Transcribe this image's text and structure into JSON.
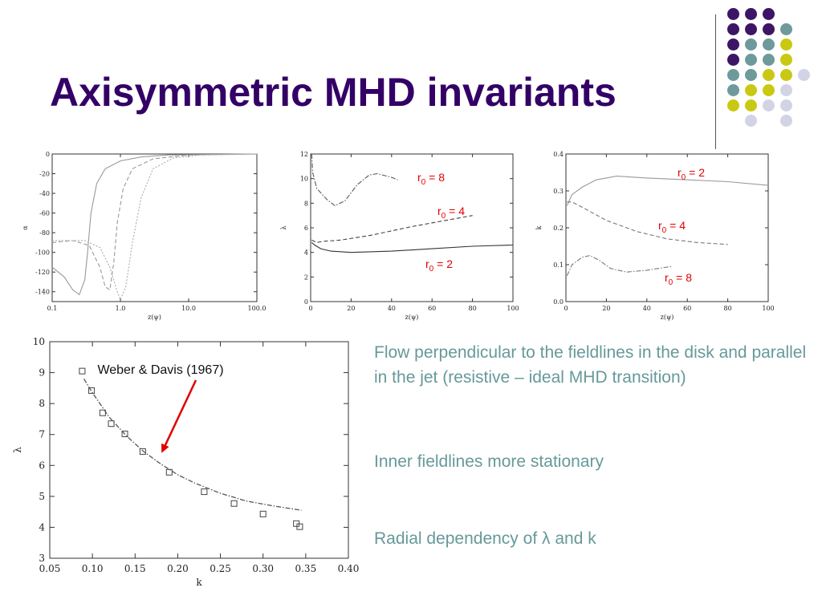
{
  "slide": {
    "title": "Axisymmetric MHD invariants",
    "bullets": [
      "Flow perpendicular to the fieldlines in the disk and parallel in the jet (resistive – ideal MHD transition)",
      "Inner fieldlines more stationary"
    ],
    "bullet3_prefix": "Radial dependency of ",
    "bullet3_symbol": "λ",
    "bullet3_suffix": " and k"
  },
  "decor_dots": [
    [
      "#3d1566",
      "#3d1566",
      "#3d1566",
      null,
      null
    ],
    [
      "#3d1566",
      "#3d1566",
      "#3d1566",
      "#6e9a9b",
      null
    ],
    [
      "#3d1566",
      "#6e9a9b",
      "#6e9a9b",
      "#c9c914",
      null
    ],
    [
      "#3d1566",
      "#6e9a9b",
      "#6e9a9b",
      "#c9c914",
      null
    ],
    [
      "#6e9a9b",
      "#6e9a9b",
      "#c9c914",
      "#c9c914",
      "#d3d3e6"
    ],
    [
      "#6e9a9b",
      "#c9c914",
      "#c9c914",
      "#d3d3e6",
      null
    ],
    [
      "#c9c914",
      "#c9c914",
      "#d3d3e6",
      "#d3d3e6",
      null
    ],
    [
      null,
      "#d3d3e6",
      null,
      "#d3d3e6",
      null
    ]
  ],
  "chart_data": [
    {
      "type": "line",
      "xlabel": "z(ψ)",
      "ylabel": "α",
      "xscale": "log",
      "xlim": [
        0.1,
        100
      ],
      "ylim": [
        -150,
        0
      ],
      "xticks": [
        {
          "v": 0.1,
          "label": "0.1"
        },
        {
          "v": 1,
          "label": "1.0"
        },
        {
          "v": 10,
          "label": "10.0"
        },
        {
          "v": 100,
          "label": "100.0"
        }
      ],
      "yticks": [
        0,
        -20,
        -40,
        -60,
        -80,
        -100,
        -120,
        -140
      ],
      "series": [
        {
          "style": "solid",
          "points": [
            [
              0.1,
              -115
            ],
            [
              0.15,
              -125
            ],
            [
              0.2,
              -138
            ],
            [
              0.25,
              -143
            ],
            [
              0.3,
              -128
            ],
            [
              0.33,
              -100
            ],
            [
              0.37,
              -60
            ],
            [
              0.45,
              -30
            ],
            [
              0.6,
              -15
            ],
            [
              1,
              -7
            ],
            [
              2,
              -3
            ],
            [
              5,
              -1
            ],
            [
              100,
              0
            ]
          ]
        },
        {
          "style": "dashed",
          "points": [
            [
              0.1,
              -90
            ],
            [
              0.2,
              -88
            ],
            [
              0.35,
              -93
            ],
            [
              0.5,
              -115
            ],
            [
              0.6,
              -135
            ],
            [
              0.7,
              -138
            ],
            [
              0.8,
              -110
            ],
            [
              0.9,
              -70
            ],
            [
              1.1,
              -35
            ],
            [
              1.5,
              -15
            ],
            [
              3,
              -5
            ],
            [
              10,
              -1
            ],
            [
              100,
              0
            ]
          ]
        },
        {
          "style": "dotted",
          "points": [
            [
              0.1,
              -88
            ],
            [
              0.3,
              -88
            ],
            [
              0.5,
              -95
            ],
            [
              0.7,
              -115
            ],
            [
              0.9,
              -140
            ],
            [
              1,
              -148
            ],
            [
              1.2,
              -135
            ],
            [
              1.5,
              -90
            ],
            [
              2,
              -45
            ],
            [
              3,
              -15
            ],
            [
              6,
              -4
            ],
            [
              15,
              -1
            ],
            [
              100,
              0
            ]
          ]
        }
      ]
    },
    {
      "type": "line",
      "xlabel": "z(ψ)",
      "ylabel": "λ",
      "xlim": [
        0,
        100
      ],
      "ylim": [
        0,
        12
      ],
      "xticks": [
        0,
        20,
        40,
        60,
        80,
        100
      ],
      "yticks": [
        0,
        2,
        4,
        6,
        8,
        10,
        12
      ],
      "annotations": [
        {
          "label": "r",
          "sub": "0",
          "text": " = 8"
        },
        {
          "label": "r",
          "sub": "0",
          "text": " = 4"
        },
        {
          "label": "r",
          "sub": "0",
          "text": " = 2"
        }
      ],
      "series": [
        {
          "name": "r0 = 2",
          "style": "solid",
          "points": [
            [
              0.5,
              4.8
            ],
            [
              2,
              4.6
            ],
            [
              5,
              4.3
            ],
            [
              10,
              4.1
            ],
            [
              20,
              4.0
            ],
            [
              40,
              4.1
            ],
            [
              60,
              4.3
            ],
            [
              80,
              4.5
            ],
            [
              100,
              4.6
            ]
          ]
        },
        {
          "name": "r0 = 4",
          "style": "dashed",
          "points": [
            [
              0.5,
              5.0
            ],
            [
              3,
              4.8
            ],
            [
              6,
              4.9
            ],
            [
              15,
              5.0
            ],
            [
              30,
              5.4
            ],
            [
              50,
              6.1
            ],
            [
              70,
              6.7
            ],
            [
              80,
              7.0
            ]
          ]
        },
        {
          "name": "r0 = 8",
          "style": "dashdot",
          "points": [
            [
              0.5,
              12
            ],
            [
              1,
              10.5
            ],
            [
              3,
              9.2
            ],
            [
              8,
              8.3
            ],
            [
              12,
              7.8
            ],
            [
              17,
              8.2
            ],
            [
              23,
              9.5
            ],
            [
              29,
              10.3
            ],
            [
              33,
              10.4
            ],
            [
              40,
              10.1
            ],
            [
              43,
              9.9
            ]
          ]
        }
      ]
    },
    {
      "type": "line",
      "xlabel": "z(ψ)",
      "ylabel": "k",
      "xlim": [
        0,
        100
      ],
      "ylim": [
        0,
        0.4
      ],
      "xticks": [
        0,
        20,
        40,
        60,
        80,
        100
      ],
      "yticks": [
        {
          "v": 0,
          "label": "0.0"
        },
        {
          "v": 0.1,
          "label": "0.1"
        },
        {
          "v": 0.2,
          "label": "0.2"
        },
        {
          "v": 0.3,
          "label": "0.3"
        },
        {
          "v": 0.4,
          "label": "0.4"
        }
      ],
      "annotations": [
        {
          "label": "r",
          "sub": "0",
          "text": " = 2"
        },
        {
          "label": "r",
          "sub": "0",
          "text": " = 4"
        },
        {
          "label": "r",
          "sub": "0",
          "text": " = 8"
        }
      ],
      "series": [
        {
          "name": "r0 = 2",
          "style": "solid",
          "points": [
            [
              0.5,
              0.26
            ],
            [
              3,
              0.29
            ],
            [
              8,
              0.31
            ],
            [
              15,
              0.33
            ],
            [
              25,
              0.34
            ],
            [
              40,
              0.335
            ],
            [
              60,
              0.33
            ],
            [
              80,
              0.325
            ],
            [
              100,
              0.315
            ]
          ]
        },
        {
          "name": "r0 = 4",
          "style": "dashed",
          "points": [
            [
              0.5,
              0.27
            ],
            [
              3,
              0.27
            ],
            [
              10,
              0.25
            ],
            [
              20,
              0.22
            ],
            [
              35,
              0.19
            ],
            [
              50,
              0.17
            ],
            [
              65,
              0.16
            ],
            [
              80,
              0.155
            ]
          ]
        },
        {
          "name": "r0 = 8",
          "style": "dashdot",
          "points": [
            [
              0.5,
              0.07
            ],
            [
              3,
              0.1
            ],
            [
              8,
              0.12
            ],
            [
              12,
              0.125
            ],
            [
              17,
              0.11
            ],
            [
              22,
              0.09
            ],
            [
              30,
              0.08
            ],
            [
              40,
              0.085
            ],
            [
              52,
              0.095
            ]
          ]
        }
      ]
    },
    {
      "type": "scatter",
      "xlabel": "k",
      "ylabel": "λ",
      "xlim": [
        0.05,
        0.4
      ],
      "ylim": [
        3,
        10
      ],
      "xticks": [
        {
          "v": 0.05,
          "label": "0.05"
        },
        {
          "v": 0.1,
          "label": "0.10"
        },
        {
          "v": 0.15,
          "label": "0.15"
        },
        {
          "v": 0.2,
          "label": "0.20"
        },
        {
          "v": 0.25,
          "label": "0.25"
        },
        {
          "v": 0.3,
          "label": "0.30"
        },
        {
          "v": 0.35,
          "label": "0.35"
        },
        {
          "v": 0.4,
          "label": "0.40"
        }
      ],
      "yticks": [
        3,
        4,
        5,
        6,
        7,
        8,
        9,
        10
      ],
      "annotation": "Weber & Davis (1967)",
      "annotation_target": [
        0.18,
        6.3
      ],
      "series": [
        {
          "style": "markers",
          "points": [
            [
              0.088,
              9.05
            ],
            [
              0.099,
              8.42
            ],
            [
              0.112,
              7.7
            ],
            [
              0.122,
              7.35
            ],
            [
              0.138,
              7.02
            ],
            [
              0.159,
              6.45
            ],
            [
              0.19,
              5.78
            ],
            [
              0.231,
              5.15
            ],
            [
              0.266,
              4.77
            ],
            [
              0.3,
              4.43
            ],
            [
              0.339,
              4.12
            ],
            [
              0.343,
              4.02
            ]
          ]
        },
        {
          "style": "dashdot",
          "points": [
            [
              0.09,
              8.8
            ],
            [
              0.1,
              8.35
            ],
            [
              0.12,
              7.55
            ],
            [
              0.14,
              6.95
            ],
            [
              0.16,
              6.45
            ],
            [
              0.18,
              6.05
            ],
            [
              0.2,
              5.7
            ],
            [
              0.22,
              5.43
            ],
            [
              0.25,
              5.1
            ],
            [
              0.28,
              4.85
            ],
            [
              0.31,
              4.7
            ],
            [
              0.345,
              4.55
            ]
          ]
        }
      ]
    }
  ]
}
